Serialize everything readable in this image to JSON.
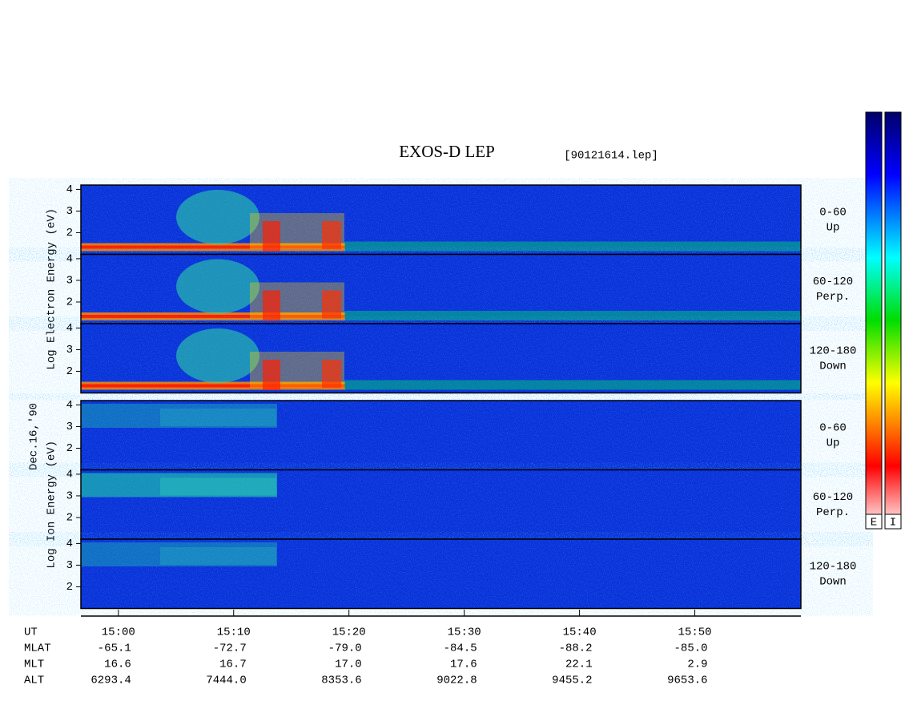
{
  "title": "EXOS-D LEP",
  "file": "[90121614.lep]",
  "date": "Dec.16,'90",
  "groups": [
    {
      "label": "Log Electron Energy (eV)",
      "panels": [
        {
          "range": "0-60",
          "direction": "Up"
        },
        {
          "range": "60-120",
          "direction": "Perp."
        },
        {
          "range": "120-180",
          "direction": "Down"
        }
      ]
    },
    {
      "label": "Log Ion Energy (eV)",
      "panels": [
        {
          "range": "0-60",
          "direction": "Up"
        },
        {
          "range": "60-120",
          "direction": "Perp."
        },
        {
          "range": "120-180",
          "direction": "Down"
        }
      ]
    }
  ],
  "ylim": [
    1,
    4.2
  ],
  "yticks": [
    2,
    3,
    4
  ],
  "xlim": [
    896.75,
    959.2
  ],
  "xticks": [
    {
      "value": 900,
      "label": "15:00"
    },
    {
      "value": 910,
      "label": "15:10"
    },
    {
      "value": 920,
      "label": "15:20"
    },
    {
      "value": 930,
      "label": "15:30"
    },
    {
      "value": 940,
      "label": "15:40"
    },
    {
      "value": 950,
      "label": "15:50"
    }
  ],
  "time_label": "UT",
  "orbit": [
    {
      "name": "MLAT",
      "values": [
        "-65.1",
        "-72.7",
        "-79.0",
        "-84.5",
        "-88.2",
        "-85.0"
      ]
    },
    {
      "name": "MLT",
      "values": [
        "16.6",
        "16.7",
        "17.0",
        "17.6",
        "22.1",
        "2.9"
      ]
    },
    {
      "name": "ALT",
      "values": [
        "6293.4",
        "7444.0",
        "8353.6",
        "9022.8",
        "9455.2",
        "9653.6"
      ]
    }
  ],
  "colorbars": [
    "E",
    "I"
  ]
}
